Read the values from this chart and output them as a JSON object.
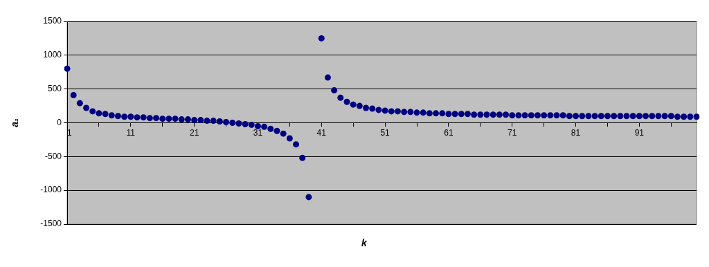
{
  "chart_data": {
    "type": "scatter",
    "xlabel": "k",
    "ylabel": "a₁",
    "categories": [
      "1",
      null,
      null,
      null,
      null,
      null,
      null,
      null,
      null,
      null,
      "11",
      null,
      null,
      null,
      null,
      null,
      null,
      null,
      null,
      null,
      "21",
      null,
      null,
      null,
      null,
      null,
      null,
      null,
      null,
      null,
      "31",
      null,
      null,
      null,
      null,
      null,
      null,
      null,
      null,
      null,
      "41",
      null,
      null,
      null,
      null,
      null,
      null,
      null,
      null,
      null,
      "51",
      null,
      null,
      null,
      null,
      null,
      null,
      null,
      null,
      null,
      "61",
      null,
      null,
      null,
      null,
      null,
      null,
      null,
      null,
      null,
      "71",
      null,
      null,
      null,
      null,
      null,
      null,
      null,
      null,
      null,
      "81",
      null,
      null,
      null,
      null,
      null,
      null,
      null,
      null,
      null,
      "91",
      null,
      null,
      null,
      null,
      null,
      null,
      null,
      null,
      null
    ],
    "series": [
      {
        "color": "#000080",
        "values": [
          800,
          410,
          290,
          220,
          170,
          140,
          130,
          110,
          100,
          90,
          90,
          80,
          80,
          70,
          70,
          60,
          60,
          60,
          50,
          50,
          40,
          40,
          30,
          30,
          20,
          10,
          0,
          -10,
          -20,
          -30,
          -50,
          -60,
          -90,
          -120,
          -160,
          -230,
          -320,
          -520,
          -1100,
          null,
          1250,
          670,
          480,
          370,
          310,
          270,
          250,
          220,
          210,
          190,
          180,
          170,
          170,
          160,
          160,
          150,
          150,
          140,
          140,
          140,
          130,
          130,
          130,
          130,
          120,
          120,
          120,
          120,
          120,
          120,
          110,
          110,
          110,
          110,
          110,
          110,
          110,
          110,
          110,
          100,
          100,
          100,
          100,
          100,
          100,
          100,
          100,
          100,
          100,
          100,
          100,
          100,
          100,
          100,
          100,
          100,
          90,
          90,
          90,
          90
        ]
      }
    ],
    "ylim": [
      -1500,
      1500
    ],
    "yticks": [
      -1500,
      -1000,
      -500,
      0,
      500,
      1000,
      1500
    ],
    "grid": "y",
    "legend": false,
    "marker": "circle"
  }
}
